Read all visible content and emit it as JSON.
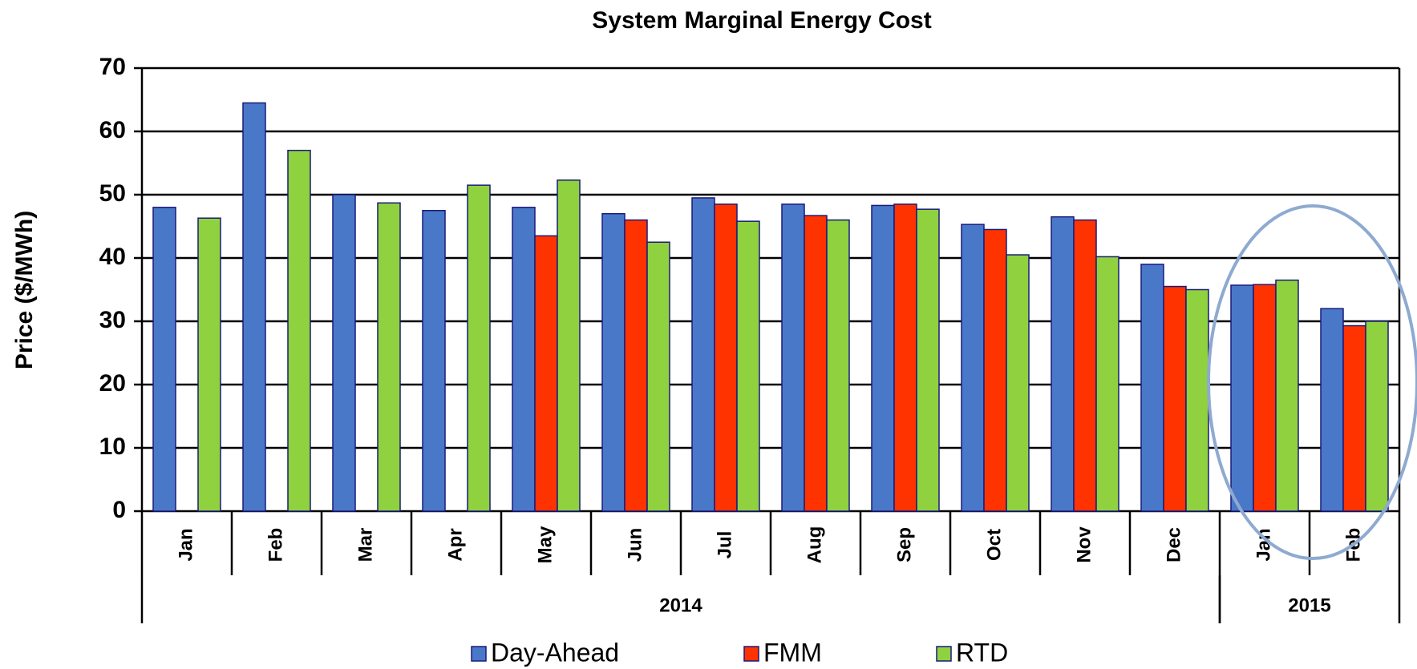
{
  "chart_data": {
    "type": "bar",
    "title": "System Marginal Energy Cost",
    "y_label": "Price ($/MWh)",
    "categories": [
      "Jan",
      "Feb",
      "Mar",
      "Apr",
      "May",
      "Jun",
      "Jul",
      "Aug",
      "Sep",
      "Oct",
      "Nov",
      "Dec",
      "Jan",
      "Feb"
    ],
    "groups": [
      {
        "label": "2014",
        "span": 12
      },
      {
        "label": "2015",
        "span": 2
      }
    ],
    "series": [
      {
        "name": "Day-Ahead",
        "color": "#4a78c8",
        "values": [
          48,
          64.5,
          50,
          47.5,
          48,
          47,
          49.5,
          48.5,
          48.3,
          45.3,
          46.5,
          39,
          35.7,
          32
        ]
      },
      {
        "name": "FMM",
        "color": "#ff3300",
        "values": [
          null,
          null,
          null,
          null,
          43.5,
          46,
          48.5,
          46.7,
          48.5,
          44.5,
          46,
          35.5,
          35.8,
          29.3
        ]
      },
      {
        "name": "RTD",
        "color": "#8fd13f",
        "values": [
          46.3,
          57,
          48.7,
          51.5,
          52.3,
          42.5,
          45.8,
          46,
          47.7,
          40.5,
          40.2,
          35,
          36.5,
          30
        ]
      }
    ],
    "ylim": [
      0,
      70
    ],
    "yticks": [
      0,
      10,
      20,
      30,
      40,
      50,
      60,
      70
    ],
    "grid": true,
    "legend": "bottom"
  }
}
